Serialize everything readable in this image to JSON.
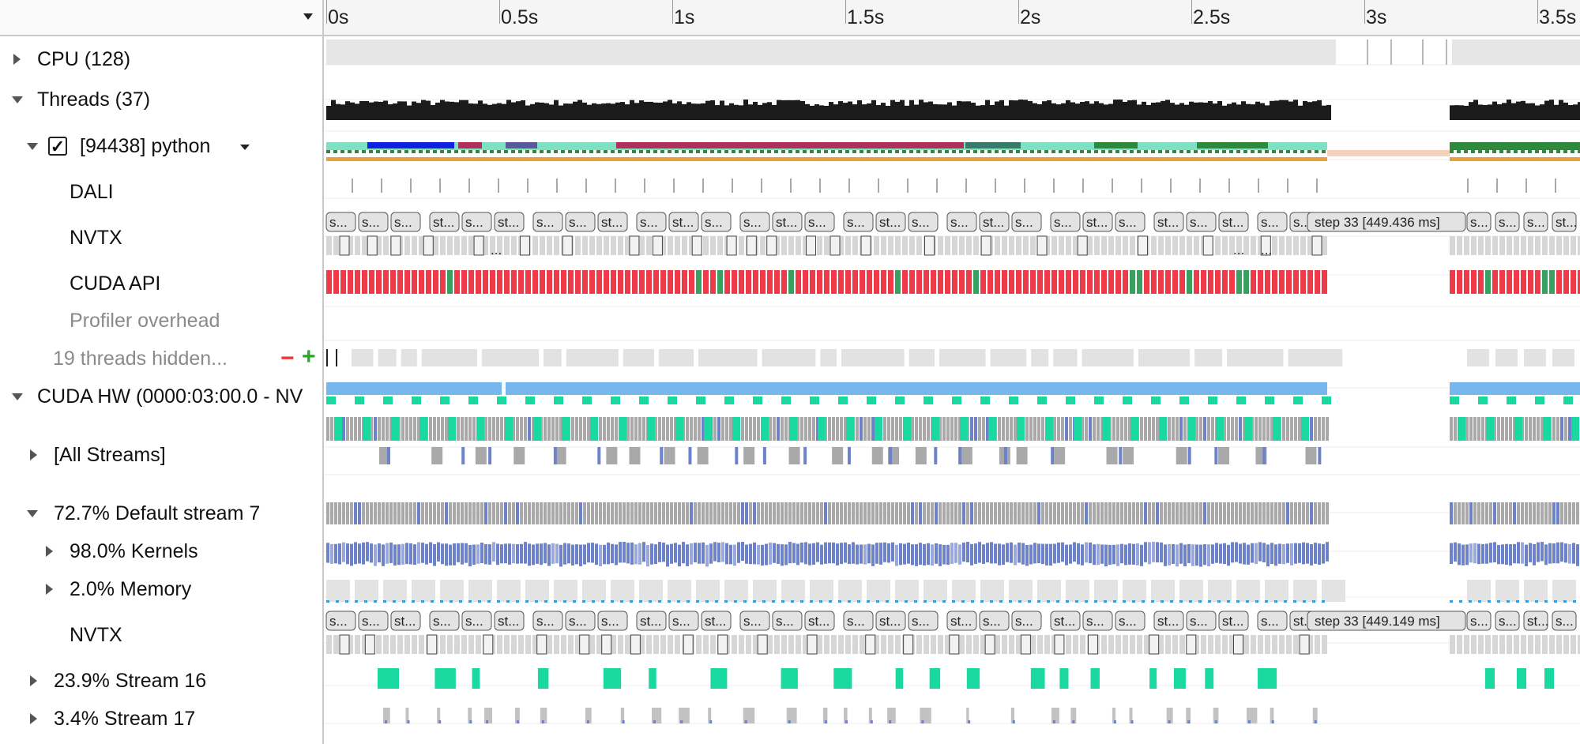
{
  "left_panel": {
    "rows": [
      {
        "id": "cpu",
        "label": "CPU (128)",
        "expander": "collapsed",
        "indent": 0
      },
      {
        "id": "threads",
        "label": "Threads (37)",
        "expander": "expanded",
        "indent": 0
      },
      {
        "id": "python",
        "label": "[94438] python",
        "expander": "expanded",
        "checked": true,
        "indent": 1
      },
      {
        "id": "dali",
        "label": "DALI",
        "indent": 3
      },
      {
        "id": "nvtx1",
        "label": "NVTX",
        "indent": 3
      },
      {
        "id": "cudaapi",
        "label": "CUDA API",
        "indent": 3
      },
      {
        "id": "profiler",
        "label": "Profiler overhead",
        "indent": 3,
        "muted": true
      },
      {
        "id": "hidden",
        "label": "19 threads hidden...",
        "indent": 2,
        "muted": true
      },
      {
        "id": "cudahw",
        "label": "CUDA HW (0000:03:00.0 - NV",
        "expander": "expanded",
        "indent": 0
      },
      {
        "id": "allstreams",
        "label": "[All Streams]",
        "expander": "collapsed",
        "indent": 1
      },
      {
        "id": "stream7",
        "label": "72.7% Default stream 7",
        "expander": "expanded",
        "indent": 1
      },
      {
        "id": "kernels",
        "label": "98.0% Kernels",
        "expander": "collapsed",
        "indent": 2
      },
      {
        "id": "memory",
        "label": "2.0% Memory",
        "expander": "collapsed",
        "indent": 2
      },
      {
        "id": "nvtx2",
        "label": "NVTX",
        "indent": 3
      },
      {
        "id": "stream16",
        "label": "23.9% Stream 16",
        "expander": "collapsed",
        "indent": 1
      },
      {
        "id": "stream17",
        "label": "3.4% Stream 17",
        "expander": "collapsed",
        "indent": 1
      }
    ],
    "hidden_minus": "−",
    "hidden_plus": "+"
  },
  "ruler": {
    "ticks": [
      "0s",
      "0.5s",
      "1s",
      "1.5s",
      "2s",
      "2.5s",
      "3s",
      "3.5s"
    ],
    "seconds_per_tick": 0.5
  },
  "nvtx_thread": {
    "short_labels": [
      "s...",
      "s...",
      "s...",
      "st...",
      "s...",
      "st...",
      "s...",
      "s...",
      "st...",
      "s...",
      "st...",
      "s...",
      "s...",
      "st...",
      "s...",
      "s...",
      "st...",
      "s...",
      "s...",
      "st...",
      "s...",
      "s...",
      "st...",
      "s...",
      "st...",
      "s...",
      "st...",
      "s...",
      "s...",
      "s...",
      "s..."
    ],
    "step_label": "step 33 [449.436 ms]",
    "ellipsis": "..."
  },
  "nvtx_stream": {
    "short_labels": [
      "s...",
      "s...",
      "st...",
      "s...",
      "s...",
      "st...",
      "s...",
      "s...",
      "s...",
      "st...",
      "s...",
      "st...",
      "s...",
      "s...",
      "st...",
      "s...",
      "st...",
      "s...",
      "st...",
      "s...",
      "s...",
      "st...",
      "s...",
      "s...",
      "st...",
      "s...",
      "st...",
      "s...",
      "st...",
      "s...",
      "st...",
      "s...",
      "s...",
      "st...",
      "s..."
    ],
    "step_label": "step 33 [449.149 ms]"
  },
  "colors": {
    "cpu_band": "#e6e6e6",
    "thread_black": "#1b1b1b",
    "teal": "#7fe0c4",
    "blue": "#1020e0",
    "crimson": "#b0305a",
    "green": "#2e8a3a",
    "orange": "#e8a13a",
    "peach": "#f6d2bd",
    "cuda_red": "#ef3a4a",
    "hw_blue": "#76b8ee",
    "kernel_gray": "#a9a9a9",
    "kernel_blue": "#6d82c9",
    "mint": "#1ad9a0",
    "nvtx_fill": "#e3e3e3"
  }
}
